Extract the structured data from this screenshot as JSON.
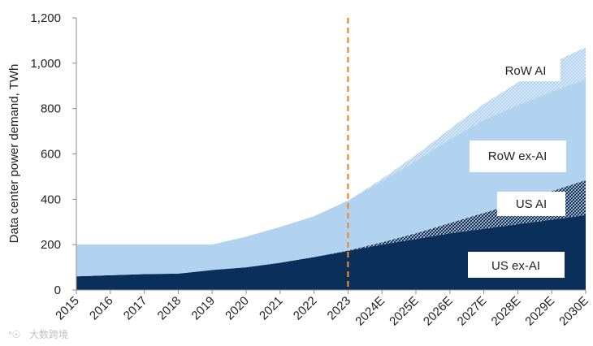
{
  "chart_data": {
    "type": "area",
    "stacked": true,
    "title": "",
    "xlabel": "",
    "ylabel": "Data center power demand, TWh",
    "ylim": [
      0,
      1200
    ],
    "yticks": [
      0,
      200,
      400,
      600,
      800,
      1000,
      1200
    ],
    "ytick_labels": [
      "0",
      "200",
      "400",
      "600",
      "800",
      "1,000",
      "1,200"
    ],
    "categories": [
      "2015",
      "2016",
      "2017",
      "2018",
      "2019",
      "2020",
      "2021",
      "2022",
      "2023",
      "2024E",
      "2025E",
      "2026E",
      "2027E",
      "2028E",
      "2029E",
      "2030E"
    ],
    "forecast_divider_after": "2023",
    "grid": false,
    "series": [
      {
        "name": "US ex-AI",
        "color": "#0b2f5b",
        "values": [
          60,
          65,
          70,
          72,
          88,
          100,
          120,
          145,
          172,
          200,
          225,
          250,
          270,
          290,
          310,
          330
        ]
      },
      {
        "name": "US AI",
        "color": "#0b2f5b",
        "hatched": true,
        "values": [
          0,
          0,
          0,
          0,
          0,
          0,
          0,
          0,
          2,
          10,
          25,
          45,
          70,
          95,
          125,
          155
        ]
      },
      {
        "name": "RoW ex-AI",
        "color": "#b1d3ef",
        "values": [
          140,
          135,
          130,
          128,
          112,
          135,
          158,
          180,
          220,
          270,
          320,
          370,
          410,
          430,
          440,
          445
        ]
      },
      {
        "name": "RoW AI",
        "color": "#b1d3ef",
        "hatched": true,
        "values": [
          0,
          0,
          0,
          0,
          0,
          0,
          0,
          0,
          0,
          10,
          25,
          45,
          70,
          100,
          125,
          140
        ]
      }
    ]
  },
  "watermark": "大数跨境"
}
